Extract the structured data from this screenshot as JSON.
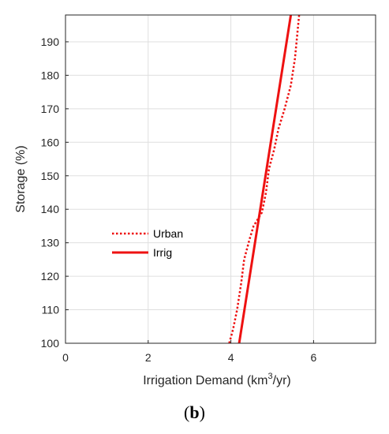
{
  "chart_data": {
    "type": "line",
    "xlabel": "Irrigation Demand (km3/yr)",
    "xlabel_parts": {
      "before": "Irrigation Demand (km",
      "sup": "3",
      "after": "/yr)"
    },
    "ylabel": "Storage (%)",
    "xlim": [
      0,
      7.5
    ],
    "ylim": [
      100,
      198
    ],
    "xticks": [
      0,
      2,
      4,
      6
    ],
    "yticks": [
      100,
      110,
      120,
      130,
      140,
      150,
      160,
      170,
      180,
      190
    ],
    "grid": true,
    "legend_position": "middle-left",
    "series": [
      {
        "name": "Urban",
        "style": "dotted",
        "color": "#ee1111",
        "points": [
          [
            3.96,
            100
          ],
          [
            4.05,
            104
          ],
          [
            4.15,
            110
          ],
          [
            4.25,
            118
          ],
          [
            4.32,
            125
          ],
          [
            4.45,
            131
          ],
          [
            4.55,
            135
          ],
          [
            4.75,
            139
          ],
          [
            4.85,
            145
          ],
          [
            4.92,
            152
          ],
          [
            5.05,
            158
          ],
          [
            5.15,
            164
          ],
          [
            5.3,
            170
          ],
          [
            5.45,
            177
          ],
          [
            5.55,
            185
          ],
          [
            5.65,
            198
          ]
        ]
      },
      {
        "name": "Irrig",
        "style": "solid",
        "color": "#ee1111",
        "points": [
          [
            4.2,
            100
          ],
          [
            5.45,
            198
          ]
        ]
      }
    ]
  },
  "panel_label": "(b)",
  "panel_label_parts": {
    "open": "(",
    "letter": "b",
    "close": ")"
  }
}
